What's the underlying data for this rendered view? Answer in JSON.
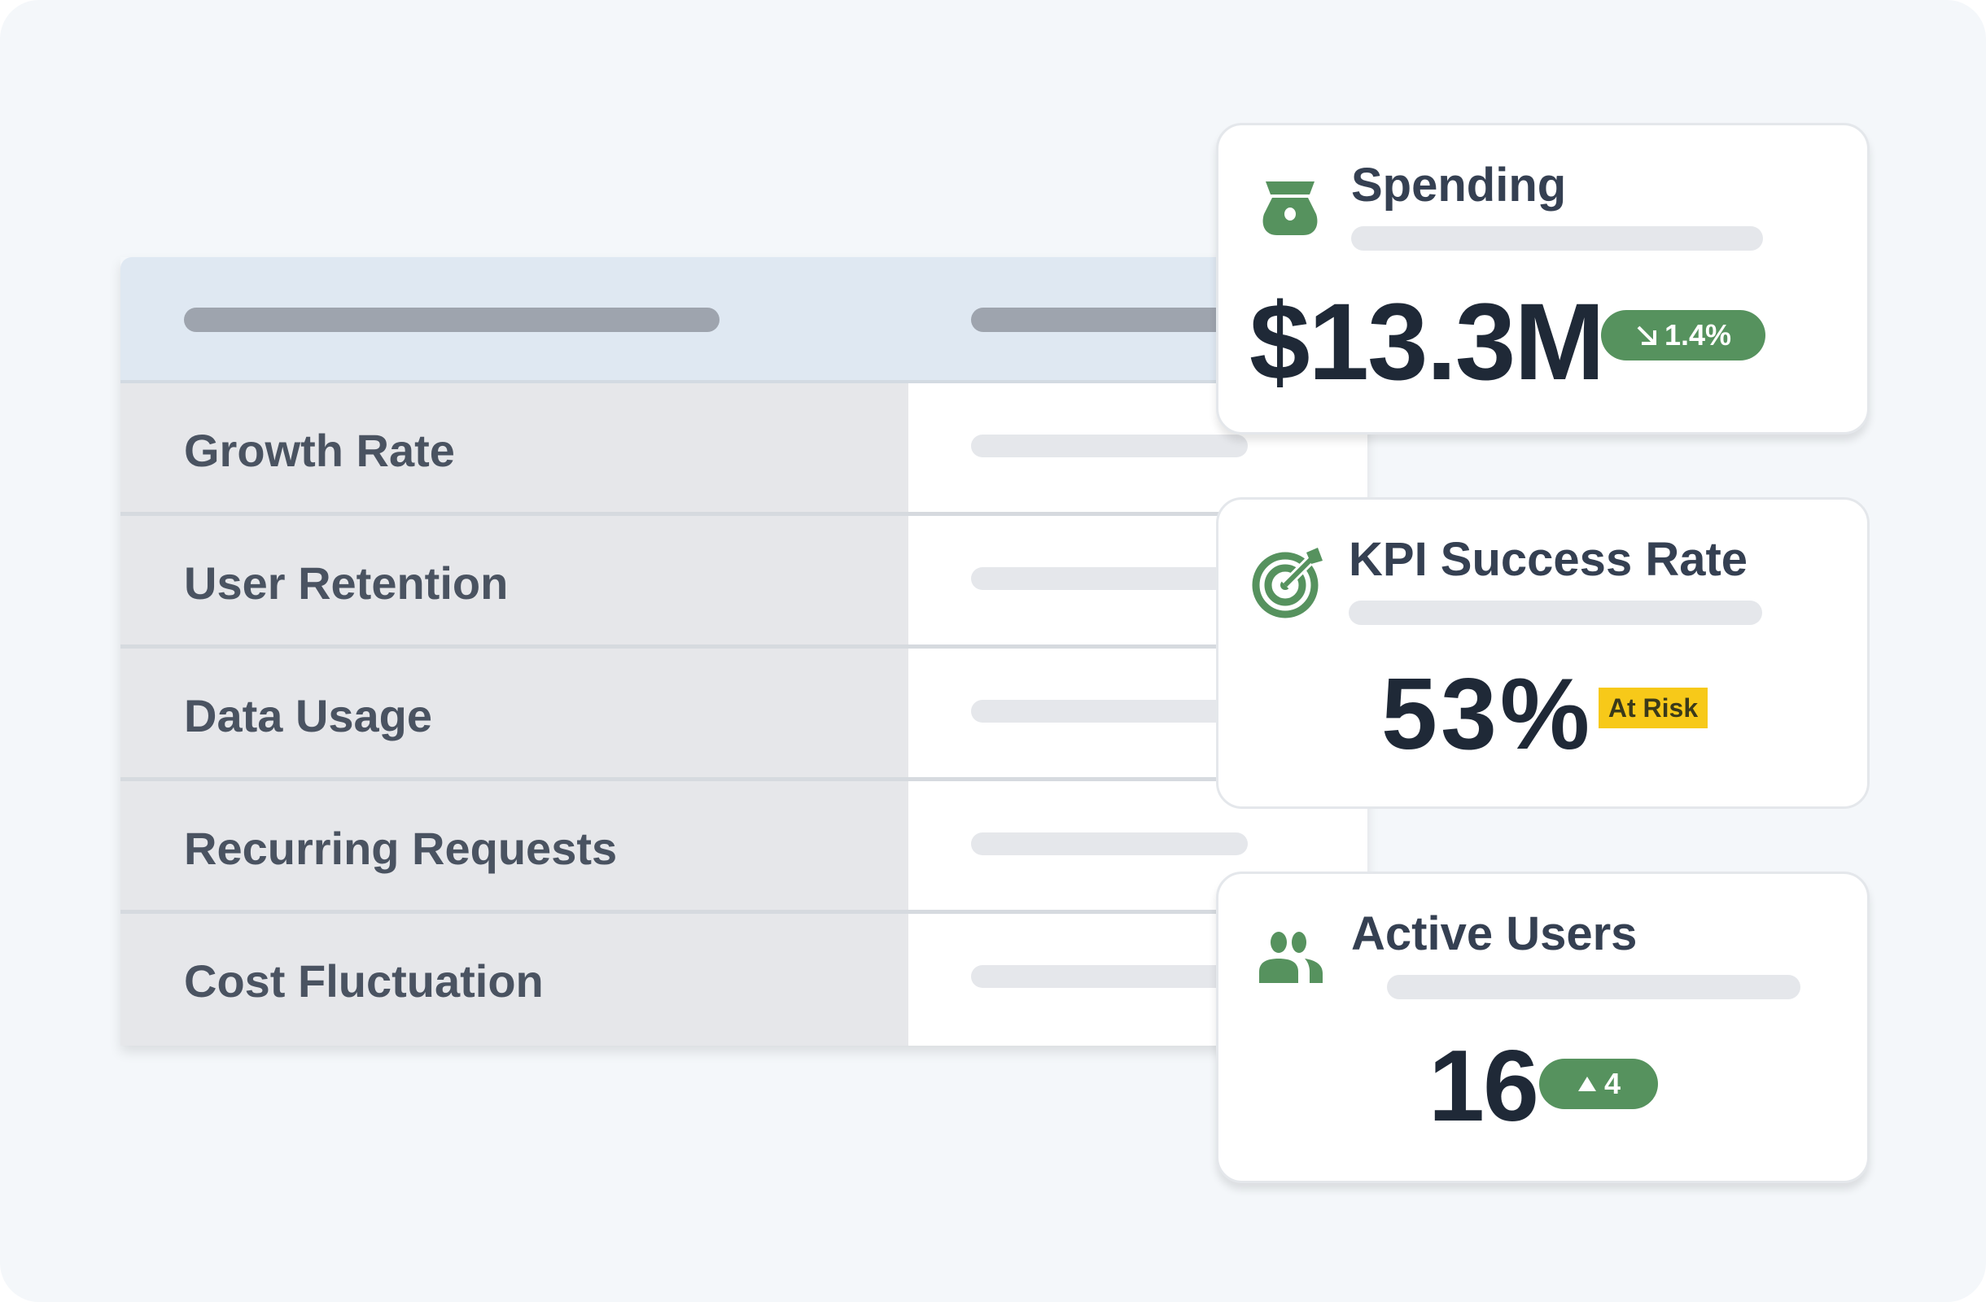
{
  "table": {
    "rows": [
      {
        "label": "Growth Rate"
      },
      {
        "label": "User Retention"
      },
      {
        "label": "Data Usage"
      },
      {
        "label": "Recurring Requests"
      },
      {
        "label": "Cost Fluctuation"
      }
    ]
  },
  "cards": {
    "spending": {
      "title": "Spending",
      "value": "$13.3M",
      "change": "1.4%",
      "trend": "down",
      "icon": "money-bag-icon"
    },
    "kpi": {
      "title": "KPI Success Rate",
      "value": "53%",
      "status": "At Risk",
      "icon": "target-icon"
    },
    "users": {
      "title": "Active Users",
      "value": "16",
      "change": "4",
      "trend": "up",
      "icon": "users-icon"
    }
  },
  "colors": {
    "accent_green": "#56925e",
    "warning_yellow": "#f7c919",
    "text_dark": "#1f2937",
    "header_bg": "#dfe8f2"
  }
}
